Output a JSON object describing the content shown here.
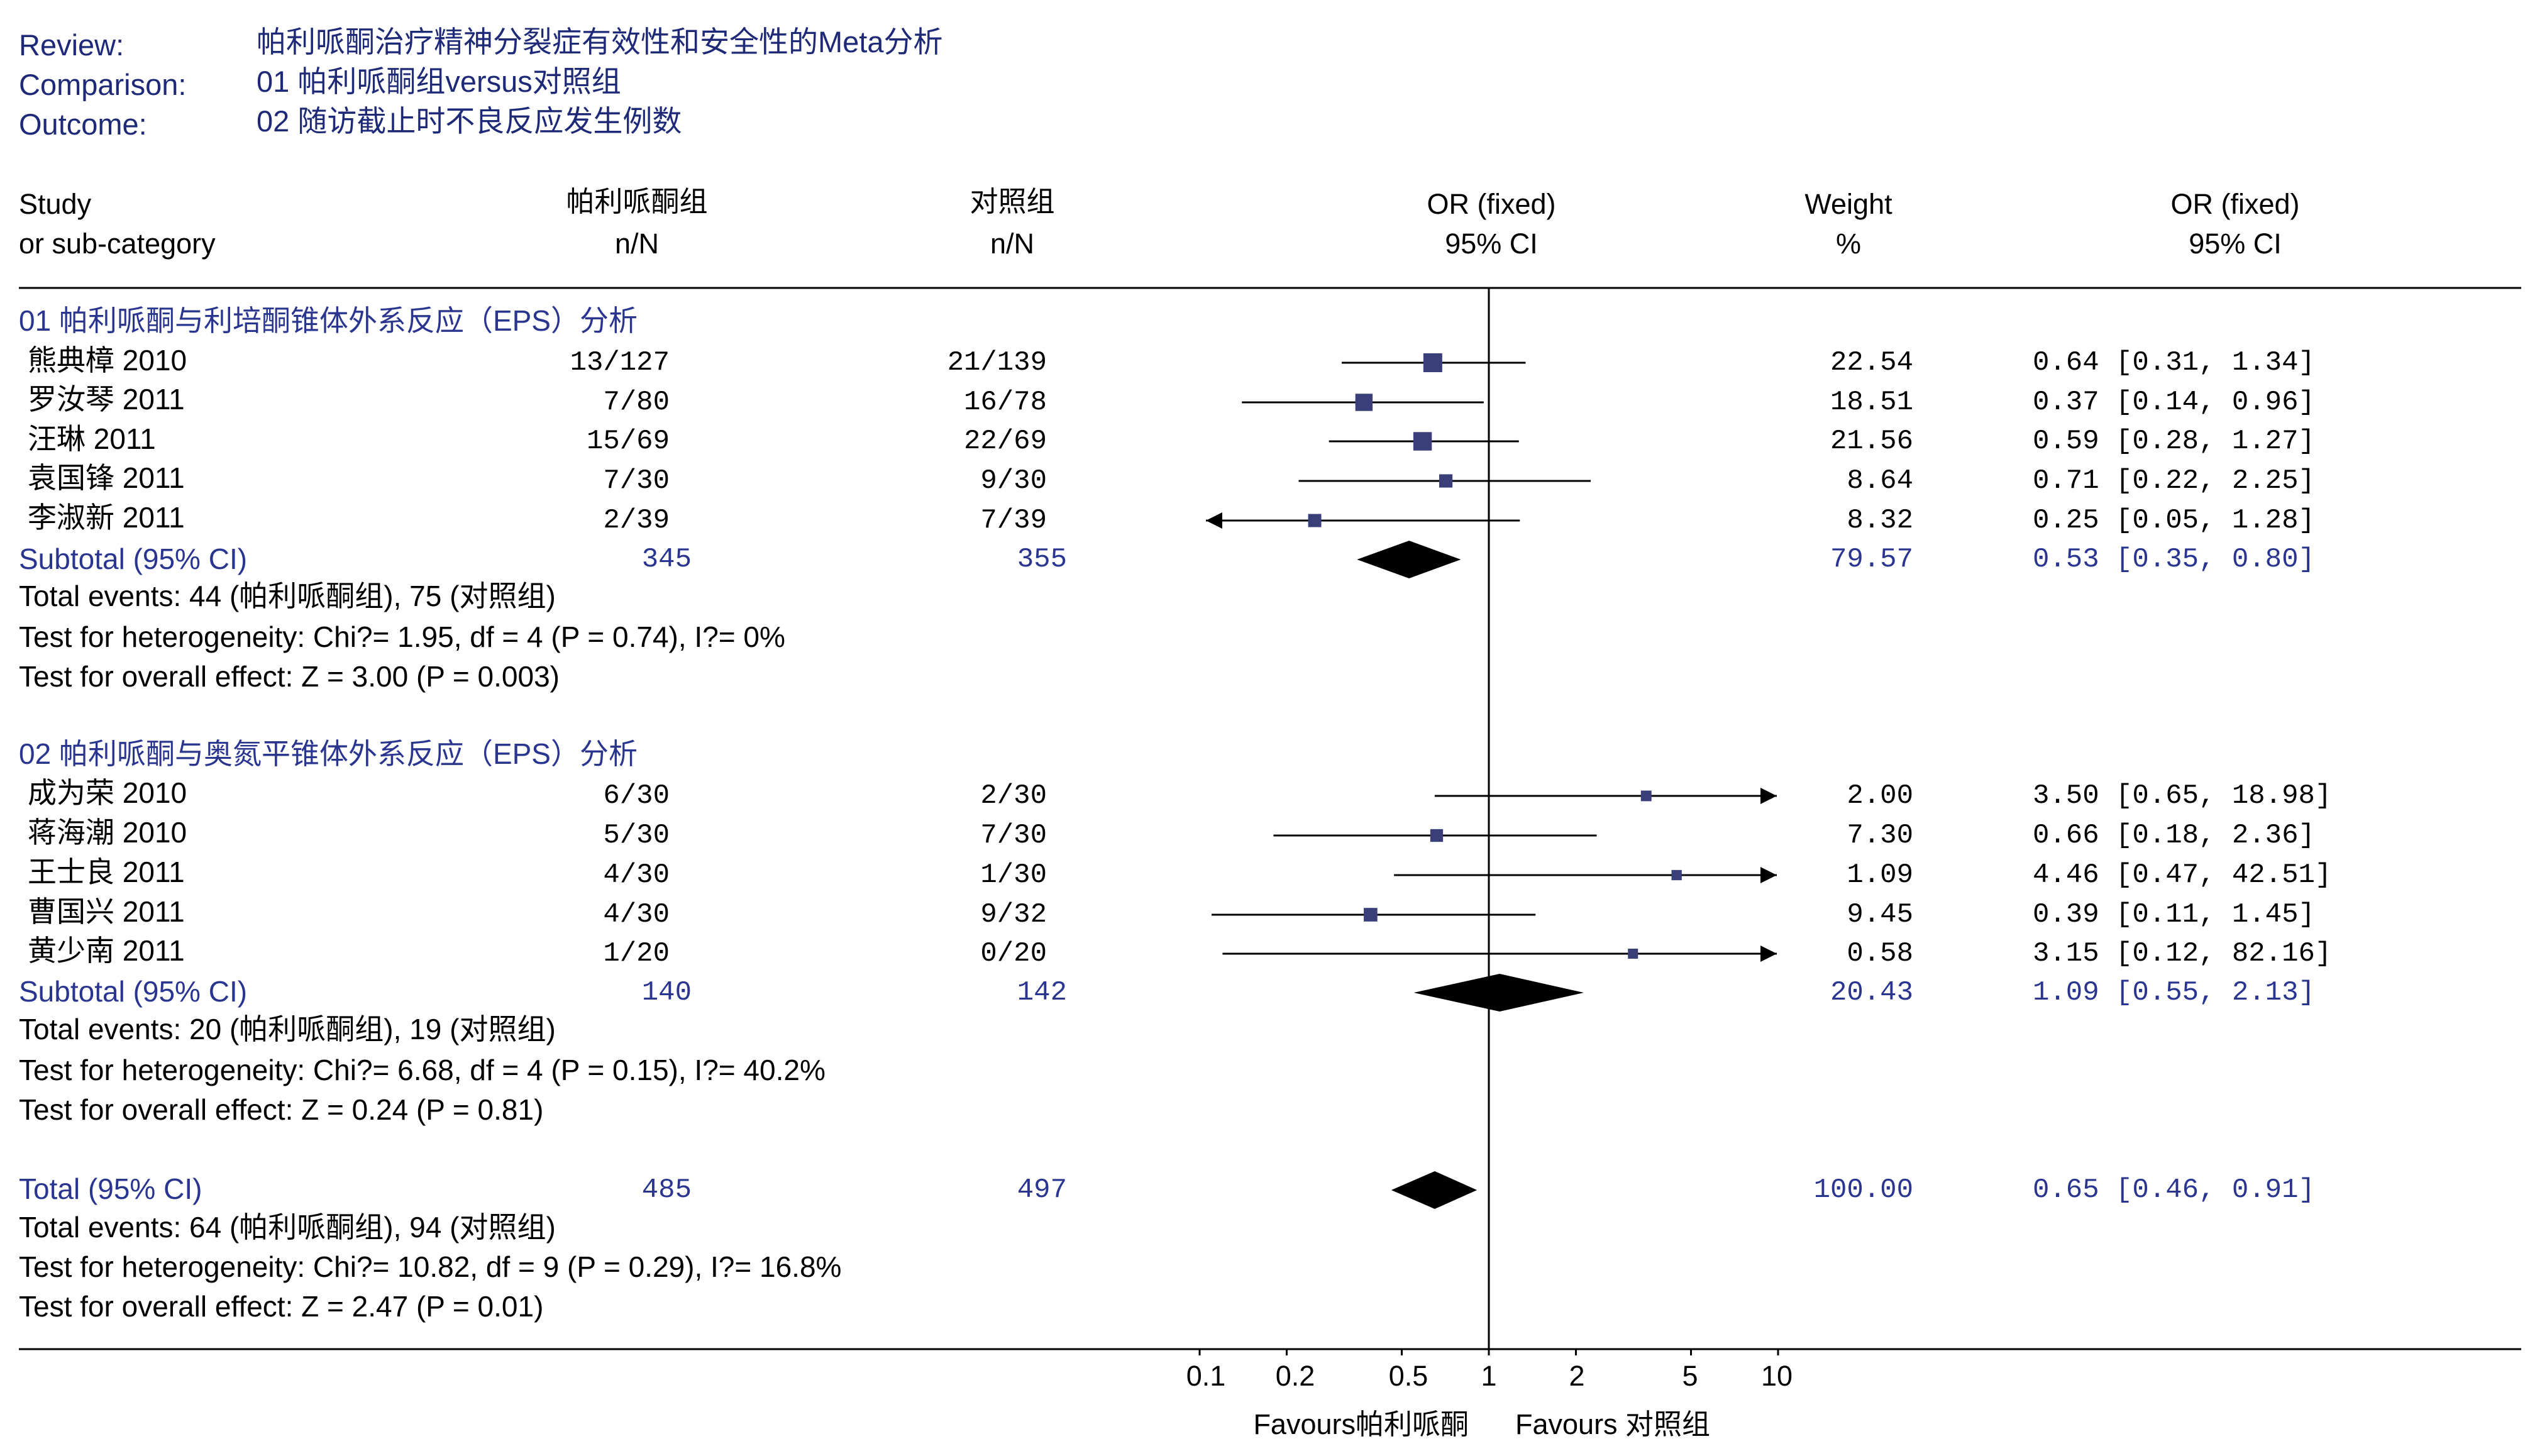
{
  "review": {
    "review_label": "Review:",
    "review_value": "帕利哌酮治疗精神分裂症有效性和安全性的Meta分析",
    "comparison_label": "Comparison:",
    "comparison_value": "01 帕利哌酮组versus对照组",
    "outcome_label": "Outcome:",
    "outcome_value": "02 随访截止时不良反应发生例数"
  },
  "columns": {
    "study": [
      "Study",
      "or sub-category"
    ],
    "treatment": [
      "帕利哌酮组",
      "n/N"
    ],
    "control": [
      "对照组",
      "n/N"
    ],
    "or_plot": [
      "OR (fixed)",
      "95% CI"
    ],
    "weight": [
      "Weight",
      "%"
    ],
    "or_text": [
      "OR (fixed)",
      "95% CI"
    ]
  },
  "groups": [
    {
      "title": "01 帕利哌酮与利培酮锥体外系反应（EPS）分析",
      "studies": [
        {
          "name": "熊典樟 2010",
          "treatment": "13/127",
          "control": "21/139",
          "weight": "22.54",
          "ci_text": "0.64 [0.31, 1.34]",
          "or": 0.64,
          "lo": 0.31,
          "hi": 1.34,
          "lo_arrow": false,
          "hi_arrow": false
        },
        {
          "name": "罗汝琴 2011",
          "treatment": "7/80",
          "control": "16/78",
          "weight": "18.51",
          "ci_text": "0.37 [0.14, 0.96]",
          "or": 0.37,
          "lo": 0.14,
          "hi": 0.96,
          "lo_arrow": false,
          "hi_arrow": false
        },
        {
          "name": "汪琳 2011",
          "treatment": "15/69",
          "control": "22/69",
          "weight": "21.56",
          "ci_text": "0.59 [0.28, 1.27]",
          "or": 0.59,
          "lo": 0.28,
          "hi": 1.27,
          "lo_arrow": false,
          "hi_arrow": false
        },
        {
          "name": "袁国锋 2011",
          "treatment": "7/30",
          "control": "9/30",
          "weight": "8.64",
          "ci_text": "0.71 [0.22, 2.25]",
          "or": 0.71,
          "lo": 0.22,
          "hi": 2.25,
          "lo_arrow": false,
          "hi_arrow": false
        },
        {
          "name": "李淑新 2011",
          "treatment": "2/39",
          "control": "7/39",
          "weight": "8.32",
          "ci_text": "0.25 [0.05, 1.28]",
          "or": 0.25,
          "lo": 0.05,
          "hi": 1.28,
          "lo_arrow": true,
          "hi_arrow": false
        }
      ],
      "subtotal": {
        "label": "Subtotal (95% CI)",
        "treatment": "345",
        "control": "355",
        "weight": "79.57",
        "ci_text": "0.53 [0.35, 0.80]",
        "or": 0.53,
        "lo": 0.35,
        "hi": 0.8
      },
      "events": "Total events: 44 (帕利哌酮组), 75 (对照组)",
      "heterogeneity": "Test for heterogeneity: Chi?= 1.95, df = 4 (P = 0.74), I?= 0%",
      "overall": "Test for overall effect: Z = 3.00 (P = 0.003)"
    },
    {
      "title": "02 帕利哌酮与奥氮平锥体外系反应（EPS）分析",
      "studies": [
        {
          "name": "成为荣 2010",
          "treatment": "6/30",
          "control": "2/30",
          "weight": "2.00",
          "ci_text": "3.50 [0.65, 18.98]",
          "or": 3.5,
          "lo": 0.65,
          "hi": 18.98,
          "lo_arrow": false,
          "hi_arrow": true
        },
        {
          "name": "蒋海潮 2010",
          "treatment": "5/30",
          "control": "7/30",
          "weight": "7.30",
          "ci_text": "0.66 [0.18, 2.36]",
          "or": 0.66,
          "lo": 0.18,
          "hi": 2.36,
          "lo_arrow": false,
          "hi_arrow": false
        },
        {
          "name": "王士良 2011",
          "treatment": "4/30",
          "control": "1/30",
          "weight": "1.09",
          "ci_text": "4.46 [0.47, 42.51]",
          "or": 4.46,
          "lo": 0.47,
          "hi": 42.51,
          "lo_arrow": false,
          "hi_arrow": true
        },
        {
          "name": "曹国兴 2011",
          "treatment": "4/30",
          "control": "9/32",
          "weight": "9.45",
          "ci_text": "0.39 [0.11, 1.45]",
          "or": 0.39,
          "lo": 0.11,
          "hi": 1.45,
          "lo_arrow": false,
          "hi_arrow": false
        },
        {
          "name": "黄少南 2011",
          "treatment": "1/20",
          "control": "0/20",
          "weight": "0.58",
          "ci_text": "3.15 [0.12, 82.16]",
          "or": 3.15,
          "lo": 0.12,
          "hi": 82.16,
          "lo_arrow": false,
          "hi_arrow": true
        }
      ],
      "subtotal": {
        "label": "Subtotal (95% CI)",
        "treatment": "140",
        "control": "142",
        "weight": "20.43",
        "ci_text": "1.09 [0.55, 2.13]",
        "or": 1.09,
        "lo": 0.55,
        "hi": 2.13
      },
      "events": "Total events: 20 (帕利哌酮组), 19 (对照组)",
      "heterogeneity": "Test for heterogeneity: Chi?= 6.68, df = 4 (P = 0.15), I?= 40.2%",
      "overall": "Test for overall effect: Z = 0.24 (P = 0.81)"
    }
  ],
  "total": {
    "label": "Total (95% CI)",
    "treatment": "485",
    "control": "497",
    "weight": "100.00",
    "ci_text": "0.65 [0.46, 0.91]",
    "or": 0.65,
    "lo": 0.46,
    "hi": 0.91,
    "events": "Total events: 64 (帕利哌酮组), 94 (对照组)",
    "heterogeneity": "Test for heterogeneity: Chi?= 10.82, df = 9 (P = 0.29), I?= 16.8%",
    "overall": "Test for overall effect: Z = 2.47 (P = 0.01)"
  },
  "axis": {
    "scale": "log",
    "range": [
      0.1,
      10
    ],
    "ticks": [
      {
        "v": 0.1,
        "label": "0.1"
      },
      {
        "v": 0.2,
        "label": "0.2"
      },
      {
        "v": 0.5,
        "label": "0.5"
      },
      {
        "v": 1,
        "label": "1"
      },
      {
        "v": 2,
        "label": "2"
      },
      {
        "v": 5,
        "label": "5"
      },
      {
        "v": 10,
        "label": "10"
      }
    ],
    "favours_left": "Favours帕利哌酮",
    "favours_right": "Favours 对照组"
  },
  "chart_data": {
    "type": "forest",
    "scale": "log",
    "xlim": [
      0.1,
      10
    ],
    "series": [
      {
        "name": "01 帕利哌酮与利培酮锥体外系反应（EPS）分析",
        "values": [
          0.64,
          0.37,
          0.59,
          0.71,
          0.25
        ],
        "lower": [
          0.31,
          0.14,
          0.28,
          0.22,
          0.05
        ],
        "upper": [
          1.34,
          0.96,
          1.27,
          2.25,
          1.28
        ],
        "weights": [
          22.54,
          18.51,
          21.56,
          8.64,
          8.32
        ]
      },
      {
        "name": "02 帕利哌酮与奥氮平锥体外系反应（EPS）分析",
        "values": [
          3.5,
          0.66,
          4.46,
          0.39,
          3.15
        ],
        "lower": [
          0.65,
          0.18,
          0.47,
          0.11,
          0.12
        ],
        "upper": [
          18.98,
          2.36,
          42.51,
          1.45,
          82.16
        ],
        "weights": [
          2.0,
          7.3,
          1.09,
          9.45,
          0.58
        ]
      }
    ],
    "pooled": {
      "subtotals": [
        0.53,
        1.09
      ],
      "total": 0.65
    }
  }
}
